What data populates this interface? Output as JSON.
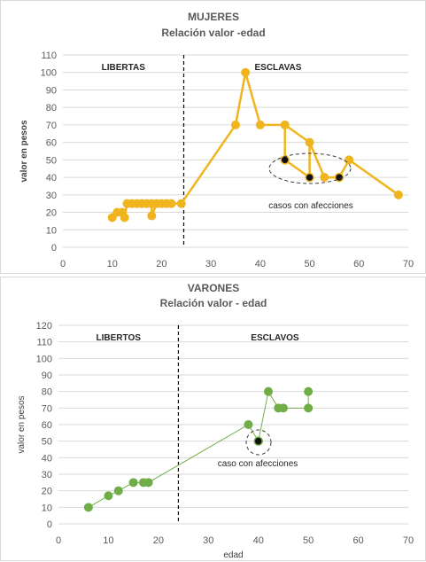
{
  "chart_data": [
    {
      "type": "line",
      "title": "MUJERES",
      "subtitle": "Relación valor -edad",
      "ylabel": "valor en pesos",
      "xlabel": "",
      "xlim": [
        0,
        70
      ],
      "ylim": [
        0,
        110
      ],
      "xticks": [
        0,
        10,
        20,
        30,
        40,
        50,
        60,
        70
      ],
      "yticks": [
        0,
        10,
        20,
        30,
        40,
        50,
        60,
        70,
        80,
        90,
        100,
        110
      ],
      "grid": true,
      "color": "#f0b51e",
      "divider_x": 24.5,
      "region_labels": {
        "left": "LIBERTAS",
        "right": "ESCLAVAS"
      },
      "annotation": "casos con afecciones",
      "series": [
        {
          "points": [
            [
              10,
              17
            ],
            [
              11,
              20
            ],
            [
              12,
              20
            ],
            [
              12.5,
              17
            ],
            [
              13,
              25
            ],
            [
              14,
              25
            ],
            [
              15,
              25
            ],
            [
              16,
              25
            ],
            [
              17,
              25
            ],
            [
              18,
              25
            ],
            [
              18,
              18
            ],
            [
              19,
              25
            ],
            [
              20,
              25
            ],
            [
              21,
              25
            ],
            [
              22,
              25
            ],
            [
              24,
              25
            ],
            [
              35,
              70
            ],
            [
              37,
              100
            ],
            [
              40,
              70
            ],
            [
              45,
              70
            ],
            [
              50,
              60
            ],
            [
              53,
              40
            ],
            [
              56,
              40
            ],
            [
              58,
              50
            ],
            [
              68,
              30
            ]
          ]
        }
      ],
      "affected_points": [
        [
          45,
          50
        ],
        [
          50,
          40
        ],
        [
          56,
          40
        ]
      ],
      "drops": [
        [
          [
            45,
            70
          ],
          [
            45,
            50
          ]
        ],
        [
          [
            50,
            60
          ],
          [
            50,
            40
          ]
        ]
      ]
    },
    {
      "type": "line",
      "title": "VARONES",
      "subtitle": "Relación valor - edad",
      "ylabel": "valor en pesos",
      "xlabel": "edad",
      "xlim": [
        0,
        70
      ],
      "ylim": [
        0,
        120
      ],
      "xticks": [
        0,
        10,
        20,
        30,
        40,
        50,
        60,
        70
      ],
      "yticks": [
        0,
        10,
        20,
        30,
        40,
        50,
        60,
        70,
        80,
        90,
        100,
        110,
        120
      ],
      "grid": true,
      "color": "#70ad47",
      "divider_x": 24,
      "region_labels": {
        "left": "LIBERTOS",
        "right": "ESCLAVOS"
      },
      "annotation": "caso con afecciones",
      "series": [
        {
          "points": [
            [
              6,
              10
            ],
            [
              10,
              17
            ],
            [
              12,
              20
            ],
            [
              15,
              25
            ],
            [
              17,
              25
            ],
            [
              18,
              25
            ],
            [
              38,
              60
            ],
            [
              40,
              50
            ],
            [
              42,
              80
            ],
            [
              44,
              70
            ],
            [
              45,
              70
            ],
            [
              50,
              70
            ],
            [
              50,
              80
            ]
          ]
        }
      ],
      "affected_points": [
        [
          40,
          50
        ]
      ]
    }
  ]
}
